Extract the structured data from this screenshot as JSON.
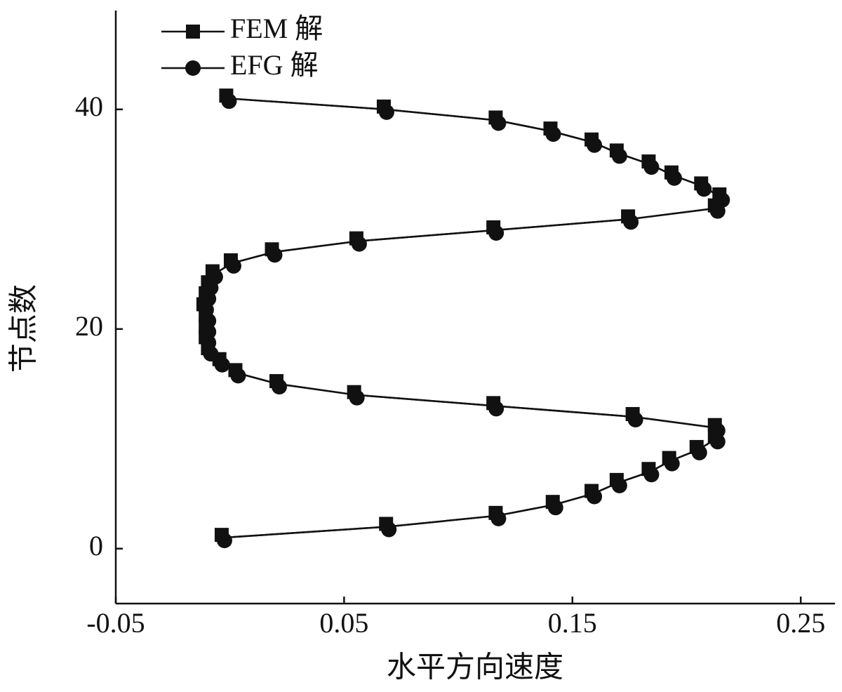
{
  "chart_data": {
    "type": "line",
    "x_label": "水平方向速度",
    "y_label": "节点数",
    "xlim": [
      -0.05,
      0.265
    ],
    "ylim": [
      -5,
      49
    ],
    "xticks": [
      -0.05,
      0.05,
      0.15,
      0.25
    ],
    "yticks": [
      0,
      20,
      40
    ],
    "grid": false,
    "legend": "upper left",
    "series": [
      {
        "name": "FEM 解",
        "color": "#111111",
        "marker": "square",
        "x": [
          -0.003,
          0.069,
          0.117,
          0.142,
          0.159,
          0.17,
          0.184,
          0.193,
          0.205,
          0.213,
          0.213,
          0.177,
          0.116,
          0.055,
          0.021,
          0.003,
          -0.004,
          -0.009,
          -0.01,
          -0.01,
          -0.01,
          -0.011,
          -0.01,
          -0.009,
          -0.007,
          0.001,
          0.019,
          0.056,
          0.116,
          0.175,
          0.213,
          0.215,
          0.207,
          0.194,
          0.184,
          0.17,
          0.159,
          0.141,
          0.117,
          0.068,
          -0.001
        ],
        "values": [
          1,
          2,
          3,
          4,
          5,
          6,
          7,
          8,
          9,
          10,
          11,
          12,
          13,
          14,
          15,
          16,
          17,
          18,
          19,
          20,
          21,
          22,
          23,
          24,
          25,
          26,
          27,
          28,
          29,
          30,
          31,
          32,
          33,
          34,
          35,
          36,
          37,
          38,
          39,
          40,
          41
        ]
      },
      {
        "name": "EFG 解",
        "color": "#111111",
        "marker": "circle",
        "x": [
          -0.003,
          0.069,
          0.117,
          0.142,
          0.159,
          0.17,
          0.184,
          0.193,
          0.205,
          0.213,
          0.213,
          0.177,
          0.116,
          0.055,
          0.021,
          0.003,
          -0.004,
          -0.009,
          -0.01,
          -0.01,
          -0.01,
          -0.011,
          -0.01,
          -0.009,
          -0.007,
          0.001,
          0.019,
          0.056,
          0.116,
          0.175,
          0.213,
          0.215,
          0.207,
          0.194,
          0.184,
          0.17,
          0.159,
          0.141,
          0.117,
          0.068,
          -0.001
        ],
        "values": [
          1,
          2,
          3,
          4,
          5,
          6,
          7,
          8,
          9,
          10,
          11,
          12,
          13,
          14,
          15,
          16,
          17,
          18,
          19,
          20,
          21,
          22,
          23,
          24,
          25,
          26,
          27,
          28,
          29,
          30,
          31,
          32,
          33,
          34,
          35,
          36,
          37,
          38,
          39,
          40,
          41
        ]
      }
    ]
  }
}
